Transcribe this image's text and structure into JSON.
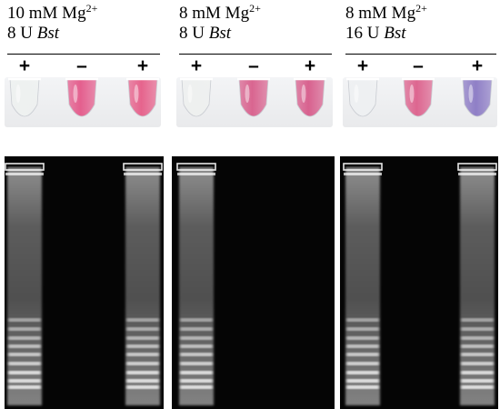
{
  "figure": {
    "panels": [
      {
        "condition": {
          "mg_conc": "10 mM Mg",
          "mg_charge": "2+",
          "enzyme_units": "8 U",
          "enzyme_name": "Bst"
        },
        "lanes": [
          {
            "sign": "+",
            "tube_color": "#eef1f0",
            "band_pattern": "ladder"
          },
          {
            "sign": "–",
            "tube_color": "#e45f8e",
            "band_pattern": "none"
          },
          {
            "sign": "+",
            "tube_color": "#e6648d",
            "band_pattern": "ladder"
          }
        ]
      },
      {
        "condition": {
          "mg_conc": "8 mM Mg",
          "mg_charge": "2+",
          "enzyme_units": "8 U",
          "enzyme_name": "Bst"
        },
        "lanes": [
          {
            "sign": "+",
            "tube_color": "#eef0ef",
            "band_pattern": "ladder"
          },
          {
            "sign": "–",
            "tube_color": "#d96590",
            "band_pattern": "none"
          },
          {
            "sign": "+",
            "tube_color": "#d8628f",
            "band_pattern": "none"
          }
        ]
      },
      {
        "condition": {
          "mg_conc": "8 mM Mg",
          "mg_charge": "2+",
          "enzyme_units": "16 U",
          "enzyme_name": "Bst"
        },
        "lanes": [
          {
            "sign": "+",
            "tube_color": "#eef0f2",
            "band_pattern": "ladder"
          },
          {
            "sign": "–",
            "tube_color": "#dd6690",
            "band_pattern": "none"
          },
          {
            "sign": "+",
            "tube_color": "#8f7fc6",
            "band_pattern": "ladder"
          }
        ]
      }
    ],
    "colors": {
      "tube_background": "#e9eaec",
      "gel_background": "#050505",
      "gel_band": "#ffffff"
    }
  }
}
